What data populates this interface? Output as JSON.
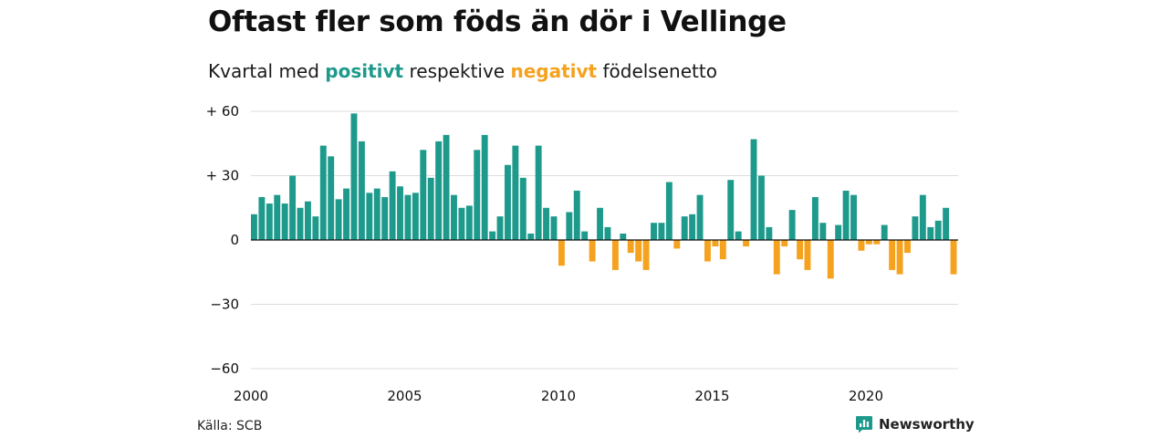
{
  "title": "Oftast fler som föds än dör i Vellinge",
  "subtitle": {
    "before": "Kvartal med ",
    "positive_word": "positivt",
    "middle": " respektive ",
    "negative_word": "negativt",
    "after": " födelsenetto"
  },
  "source": "Källa: SCB",
  "brand": "Newsworthy",
  "colors": {
    "positive": "#1e9a8c",
    "negative": "#f5a21e",
    "brand": "#1e9a8c"
  },
  "chart_data": {
    "type": "bar",
    "x_start": "2000 Q1",
    "ylim": [
      -60,
      60
    ],
    "yticks": [
      {
        "value": 60,
        "label": "+ 60"
      },
      {
        "value": 30,
        "label": "+ 30"
      },
      {
        "value": 0,
        "label": "0"
      },
      {
        "value": -30,
        "label": "−30"
      },
      {
        "value": -60,
        "label": "−60"
      }
    ],
    "xticks": [
      {
        "year": 2000,
        "label": "2000"
      },
      {
        "year": 2005,
        "label": "2005"
      },
      {
        "year": 2010,
        "label": "2010"
      },
      {
        "year": 2015,
        "label": "2015"
      },
      {
        "year": 2020,
        "label": "2020"
      }
    ],
    "grid": true,
    "values": [
      12,
      20,
      17,
      21,
      17,
      30,
      15,
      18,
      11,
      44,
      39,
      19,
      24,
      59,
      46,
      22,
      24,
      20,
      32,
      25,
      21,
      22,
      42,
      29,
      46,
      49,
      21,
      15,
      16,
      42,
      49,
      4,
      11,
      35,
      44,
      29,
      3,
      44,
      15,
      11,
      -12,
      13,
      23,
      4,
      -10,
      15,
      6,
      -14,
      3,
      -6,
      -10,
      -14,
      8,
      8,
      27,
      -4,
      11,
      12,
      21,
      -10,
      -3,
      -9,
      28,
      4,
      -3,
      47,
      30,
      6,
      -16,
      -3,
      14,
      -9,
      -14,
      20,
      8,
      -18,
      7,
      23,
      21,
      -5,
      -2,
      -2,
      7,
      -14,
      -16,
      -6,
      11,
      21,
      6,
      9,
      15,
      -16
    ]
  }
}
